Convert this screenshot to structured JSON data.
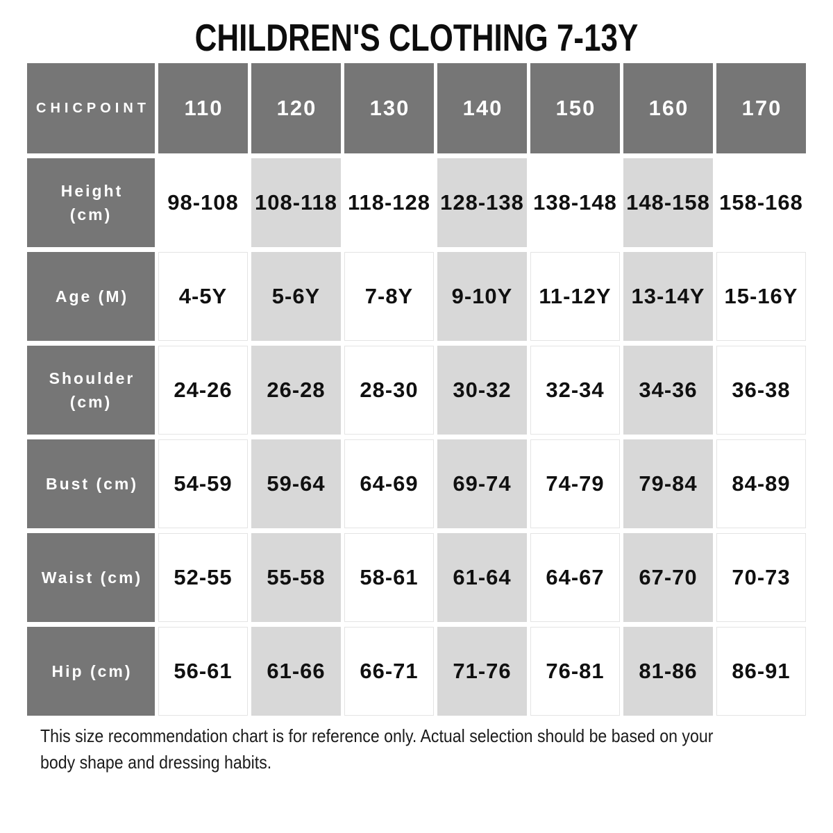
{
  "title": "CHILDREN'S CLOTHING 7-13Y",
  "table": {
    "brand": "CHICPOINT",
    "sizes": [
      "110",
      "120",
      "130",
      "140",
      "150",
      "160",
      "170"
    ],
    "rows": [
      {
        "label": "Height (cm)",
        "values": [
          "98-108",
          "108-118",
          "118-128",
          "128-138",
          "138-148",
          "148-158",
          "158-168"
        ]
      },
      {
        "label": "Age (M)",
        "values": [
          "4-5Y",
          "5-6Y",
          "7-8Y",
          "9-10Y",
          "11-12Y",
          "13-14Y",
          "15-16Y"
        ]
      },
      {
        "label": "Shoulder (cm)",
        "values": [
          "24-26",
          "26-28",
          "28-30",
          "30-32",
          "32-34",
          "34-36",
          "36-38"
        ]
      },
      {
        "label": "Bust (cm)",
        "values": [
          "54-59",
          "59-64",
          "64-69",
          "69-74",
          "74-79",
          "79-84",
          "84-89"
        ]
      },
      {
        "label": "Waist (cm)",
        "values": [
          "52-55",
          "55-58",
          "58-61",
          "61-64",
          "64-67",
          "67-70",
          "70-73"
        ]
      },
      {
        "label": "Hip (cm)",
        "values": [
          "56-61",
          "61-66",
          "66-71",
          "71-76",
          "76-81",
          "81-86",
          "86-91"
        ]
      }
    ]
  },
  "footer": {
    "line1": "This size recommendation chart is for reference only. Actual selection should be based on your",
    "line2": "body shape and dressing habits."
  },
  "colors": {
    "header_bg": "#767676",
    "alt_column_bg": "#d8d8d8",
    "white_cell_border": "#e4e4e4",
    "text_dark": "#101010",
    "text_light": "#ffffff",
    "page_bg": "#ffffff"
  },
  "chart_data": {
    "type": "table",
    "title": "CHILDREN'S CLOTHING 7-13Y",
    "columns": [
      "CHICPOINT",
      "110",
      "120",
      "130",
      "140",
      "150",
      "160",
      "170"
    ],
    "rows": [
      [
        "Height (cm)",
        "98-108",
        "108-118",
        "118-128",
        "128-138",
        "138-148",
        "148-158",
        "158-168"
      ],
      [
        "Age (M)",
        "4-5Y",
        "5-6Y",
        "7-8Y",
        "9-10Y",
        "11-12Y",
        "13-14Y",
        "15-16Y"
      ],
      [
        "Shoulder (cm)",
        "24-26",
        "26-28",
        "28-30",
        "30-32",
        "32-34",
        "34-36",
        "36-38"
      ],
      [
        "Bust (cm)",
        "54-59",
        "59-64",
        "64-69",
        "69-74",
        "74-79",
        "79-84",
        "84-89"
      ],
      [
        "Waist (cm)",
        "52-55",
        "55-58",
        "58-61",
        "61-64",
        "64-67",
        "67-70",
        "70-73"
      ],
      [
        "Hip (cm)",
        "56-61",
        "61-66",
        "66-71",
        "71-76",
        "76-81",
        "81-86",
        "86-91"
      ]
    ],
    "note": "This size recommendation chart is for reference only. Actual selection should be based on your body shape and dressing habits.",
    "layout": {
      "shaded_columns": [
        "120",
        "140",
        "160"
      ],
      "header_style": "dark-gray",
      "grid": "gapped-cells"
    }
  }
}
